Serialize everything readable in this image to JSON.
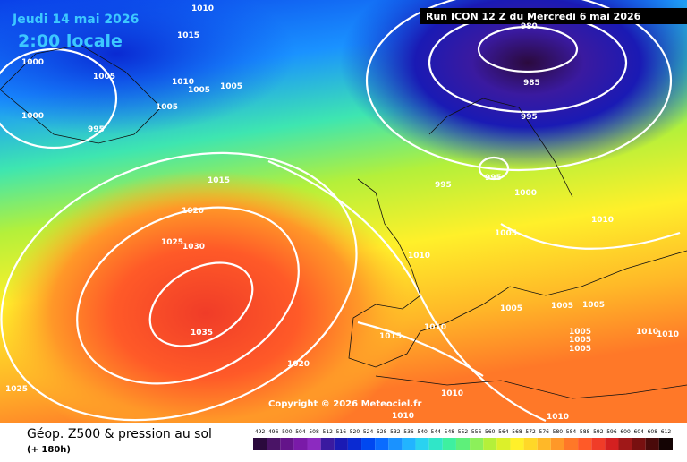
{
  "header": {
    "date": "Jeudi 14 mai 2026",
    "time": "2:00 locale",
    "run": "Run ICON 12 Z du Mercredi 6 mai 2026"
  },
  "copyright": "Copyright © 2026 Meteociel.fr",
  "footer": {
    "title": "Géop. Z500 & pression au sol",
    "lead": "(+ 180h)"
  },
  "isobar_labels": [
    1010,
    1015,
    1000,
    1005,
    1010,
    1005,
    1005,
    1005,
    995,
    1000,
    980,
    985,
    995,
    995,
    995,
    1000,
    1015,
    1020,
    1025,
    1030,
    1010,
    1005,
    1010,
    1005,
    1005,
    1005,
    1015,
    1010,
    1035,
    1020,
    1025,
    1005,
    1005,
    1005,
    1010,
    1010,
    1010,
    1010,
    1010
  ],
  "legend": {
    "values": [
      492,
      496,
      500,
      504,
      508,
      512,
      516,
      520,
      524,
      528,
      532,
      536,
      540,
      544,
      548,
      552,
      556,
      560,
      564,
      568,
      572,
      576,
      580,
      584,
      588,
      592,
      596,
      600,
      604,
      608,
      612
    ],
    "colors": [
      "#2b0a3d",
      "#4a1466",
      "#64148a",
      "#7a1aa8",
      "#8c2ac0",
      "#3a1aa0",
      "#1a1ab4",
      "#0a2ad2",
      "#0048f0",
      "#0a6cff",
      "#1a92ff",
      "#22b4ff",
      "#2ad2f0",
      "#30e6c8",
      "#3ef0a0",
      "#5ef07a",
      "#8cf05a",
      "#b4f03a",
      "#dcf02a",
      "#fff02a",
      "#ffd828",
      "#ffb828",
      "#ff9828",
      "#ff7828",
      "#ff5a28",
      "#f03c28",
      "#d42020",
      "#a01818",
      "#781010",
      "#4a0a0a",
      "#140404"
    ]
  }
}
